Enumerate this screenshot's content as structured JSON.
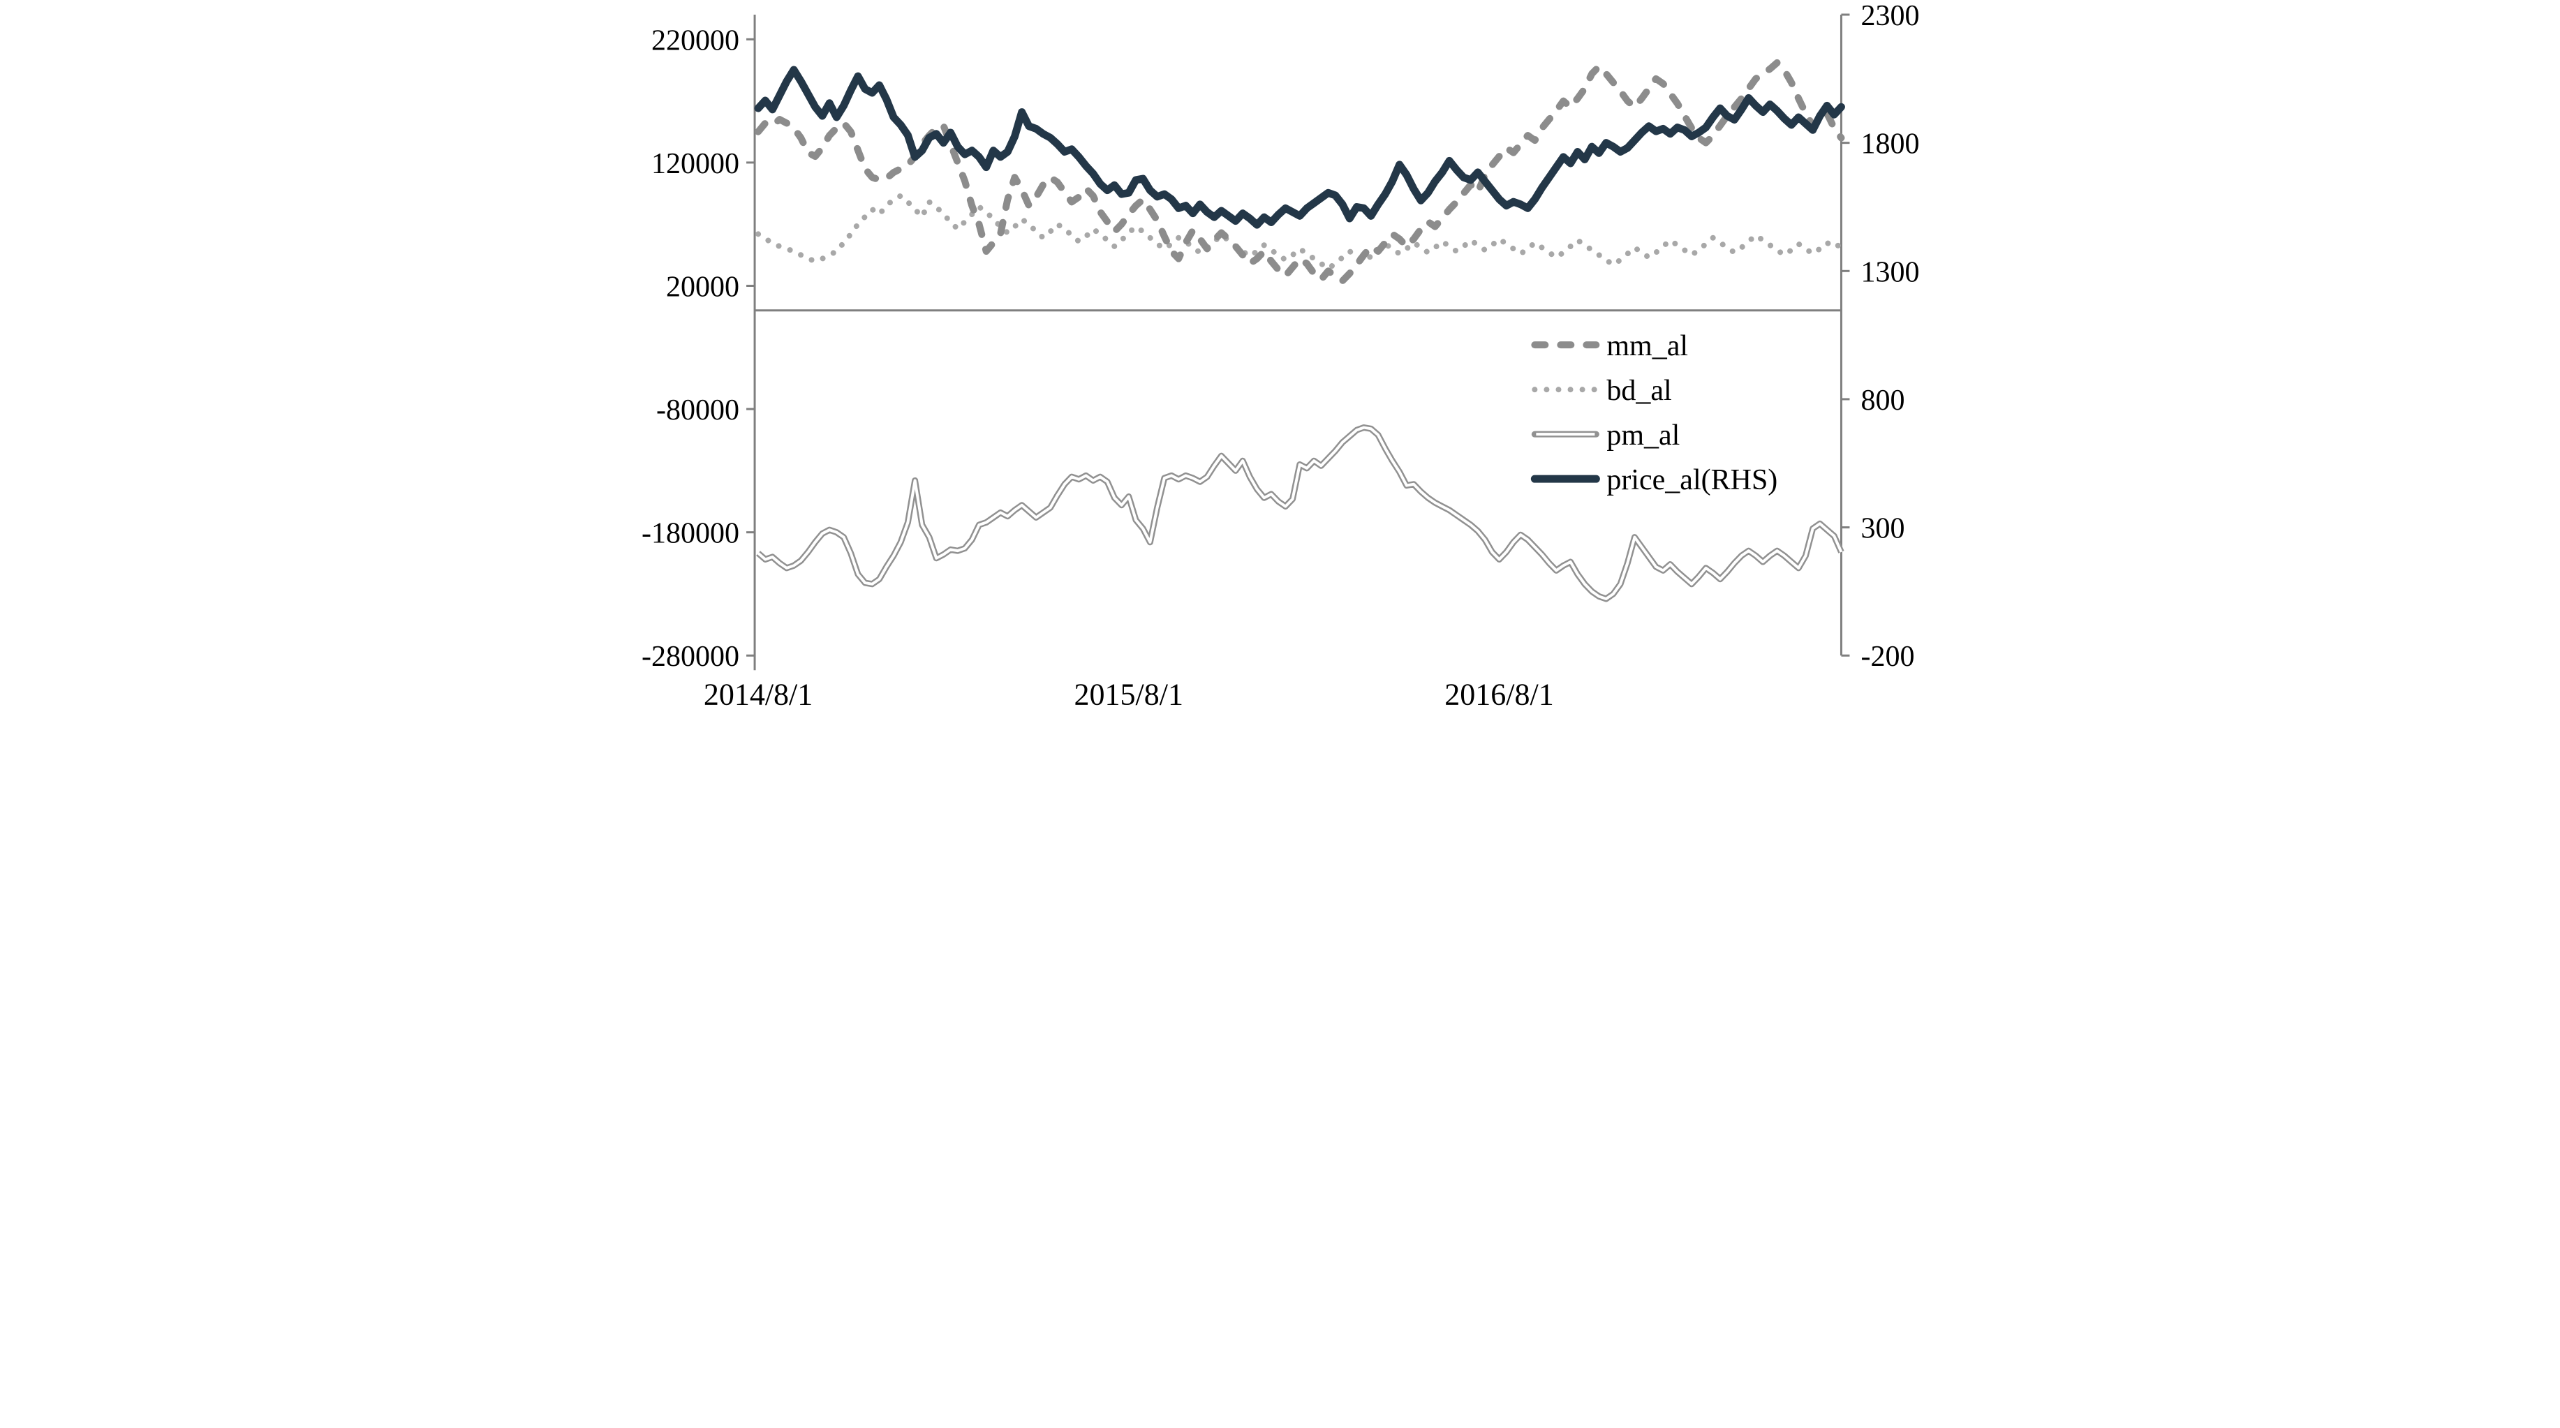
{
  "chart_data": {
    "type": "line",
    "title": "",
    "x_axis": {
      "labels": [
        "2014/8/1",
        "2015/8/1",
        "2016/8/1"
      ],
      "label_week_indices": [
        0,
        52,
        104
      ],
      "weeks_total": 153
    },
    "left_axis": {
      "min": -280000,
      "max": 240000,
      "tick_values": [
        220000,
        120000,
        20000,
        -80000,
        -180000,
        -280000
      ],
      "crosses_at": 0
    },
    "right_axis": {
      "min": -200,
      "max": 2300,
      "tick_values": [
        2300,
        1800,
        1300,
        800,
        300,
        -200
      ]
    },
    "grid": "off",
    "legend_position": "middle-right",
    "legend": [
      {
        "label": "mm_al",
        "style": "dashed",
        "color": "#8C8C8C"
      },
      {
        "label": "bd_al",
        "style": "dotted",
        "color": "#A8A8A8"
      },
      {
        "label": "pm_al",
        "style": "double",
        "color": "#919191"
      },
      {
        "label": "price_al(RHS)",
        "style": "solid",
        "color": "#233748"
      }
    ],
    "axis_color": "#7F7F7F",
    "series": [
      {
        "name": "mm_al",
        "axis": "left",
        "style": "dashed",
        "color": "#8C8C8C",
        "values": [
          145000,
          152000,
          150000,
          155000,
          152000,
          148000,
          140000,
          128000,
          125000,
          132000,
          142000,
          148000,
          152000,
          145000,
          130000,
          115000,
          108000,
          106000,
          107000,
          112000,
          115000,
          118000,
          125000,
          135000,
          142000,
          148000,
          150000,
          135000,
          120000,
          105000,
          85000,
          70000,
          48000,
          55000,
          62000,
          90000,
          108000,
          98000,
          85000,
          92000,
          102000,
          108000,
          104000,
          96000,
          88000,
          92000,
          99000,
          93000,
          80000,
          72000,
          64000,
          70000,
          78000,
          85000,
          90000,
          82000,
          73000,
          60000,
          48000,
          42000,
          55000,
          65000,
          58000,
          50000,
          57000,
          63000,
          58000,
          52000,
          45000,
          38000,
          42000,
          48000,
          40000,
          33000,
          28000,
          35000,
          42000,
          38000,
          30000,
          25000,
          32000,
          28000,
          24000,
          30000,
          37000,
          45000,
          52000,
          48000,
          55000,
          62000,
          58000,
          52000,
          58000,
          66000,
          72000,
          68000,
          75000,
          82000,
          88000,
          95000,
          102000,
          96000,
          110000,
          118000,
          125000,
          132000,
          128000,
          135000,
          142000,
          138000,
          148000,
          155000,
          162000,
          170000,
          165000,
          172000,
          180000,
          192000,
          198000,
          192000,
          185000,
          178000,
          170000,
          165000,
          172000,
          180000,
          188000,
          184000,
          176000,
          168000,
          158000,
          148000,
          140000,
          136000,
          142000,
          150000,
          158000,
          165000,
          172000,
          180000,
          188000,
          192000,
          196000,
          201000,
          195000,
          185000,
          172000,
          160000,
          150000,
          155000,
          160000,
          148000,
          140000
        ]
      },
      {
        "name": "bd_al",
        "axis": "left",
        "style": "dotted",
        "color": "#A8A8A8",
        "values": [
          62000,
          58000,
          55000,
          52000,
          50000,
          48000,
          45000,
          42000,
          40000,
          42000,
          45000,
          48000,
          55000,
          62000,
          70000,
          76000,
          82000,
          78000,
          85000,
          90000,
          93000,
          88000,
          82000,
          76000,
          88000,
          84000,
          78000,
          72000,
          66000,
          72000,
          78000,
          84000,
          80000,
          74000,
          68000,
          63000,
          68000,
          74000,
          70000,
          64000,
          59000,
          64000,
          70000,
          66000,
          61000,
          56000,
          60000,
          66000,
          62000,
          57000,
          52000,
          57000,
          63000,
          68000,
          64000,
          59000,
          54000,
          50000,
          54000,
          59000,
          56000,
          51000,
          47000,
          51000,
          56000,
          61000,
          57000,
          52000,
          48000,
          44000,
          48000,
          53000,
          49000,
          45000,
          41000,
          45000,
          50000,
          46000,
          42000,
          38000,
          34000,
          38000,
          43000,
          48000,
          44000,
          40000,
          44000,
          49000,
          54000,
          50000,
          46000,
          50000,
          55000,
          51000,
          47000,
          51000,
          56000,
          52000,
          48000,
          52000,
          57000,
          53000,
          49000,
          53000,
          58000,
          54000,
          50000,
          46000,
          50000,
          55000,
          51000,
          47000,
          43000,
          47000,
          52000,
          57000,
          53000,
          49000,
          45000,
          41000,
          37000,
          41000,
          46000,
          51000,
          47000,
          43000,
          47000,
          52000,
          57000,
          53000,
          49000,
          45000,
          49000,
          54000,
          59000,
          55000,
          51000,
          47000,
          51000,
          56000,
          61000,
          57000,
          53000,
          49000,
          45000,
          49000,
          54000,
          50000,
          46000,
          50000,
          55000,
          51000,
          54000
        ]
      },
      {
        "name": "pm_al",
        "axis": "left",
        "style": "double",
        "color": "#919191",
        "values": [
          -197000,
          -202000,
          -200000,
          -205000,
          -209000,
          -207000,
          -203000,
          -196000,
          -188000,
          -181000,
          -178000,
          -180000,
          -184000,
          -197000,
          -214000,
          -221000,
          -222000,
          -218000,
          -208000,
          -199000,
          -188000,
          -172000,
          -138000,
          -174000,
          -184000,
          -201000,
          -198000,
          -194000,
          -195000,
          -193000,
          -186000,
          -174000,
          -172000,
          -168000,
          -164000,
          -167000,
          -162000,
          -158000,
          -163000,
          -168000,
          -164000,
          -160000,
          -150000,
          -141000,
          -135000,
          -137000,
          -134000,
          -138000,
          -135000,
          -139000,
          -152000,
          -158000,
          -151000,
          -170000,
          -177000,
          -188000,
          -160000,
          -136000,
          -134000,
          -137000,
          -134000,
          -136000,
          -139000,
          -135000,
          -126000,
          -118000,
          -124000,
          -130000,
          -122000,
          -135000,
          -145000,
          -152000,
          -149000,
          -155000,
          -159000,
          -153000,
          -125000,
          -128000,
          -122000,
          -126000,
          -120000,
          -114000,
          -107000,
          -102000,
          -97000,
          -95000,
          -96000,
          -101000,
          -112000,
          -122000,
          -131000,
          -142000,
          -141000,
          -147000,
          -152000,
          -156000,
          -159000,
          -162000,
          -166000,
          -170000,
          -174000,
          -179000,
          -186000,
          -196000,
          -202000,
          -196000,
          -188000,
          -182000,
          -186000,
          -192000,
          -198000,
          -205000,
          -211000,
          -207000,
          -204000,
          -214000,
          -222000,
          -228000,
          -232000,
          -234000,
          -230000,
          -222000,
          -205000,
          -184000,
          -192000,
          -200000,
          -208000,
          -211000,
          -206000,
          -212000,
          -217000,
          -222000,
          -216000,
          -209000,
          -213000,
          -218000,
          -212000,
          -205000,
          -199000,
          -195000,
          -199000,
          -204000,
          -199000,
          -195000,
          -199000,
          -204000,
          -209000,
          -199000,
          -177000,
          -173000,
          -178000,
          -183000,
          -196000
        ]
      },
      {
        "name": "price_al(RHS)",
        "axis": "right",
        "style": "solid",
        "color": "#233748",
        "values": [
          1935,
          1965,
          1930,
          1985,
          2040,
          2085,
          2040,
          1990,
          1940,
          1905,
          1955,
          1900,
          1945,
          2005,
          2060,
          2010,
          1995,
          2025,
          1970,
          1900,
          1870,
          1830,
          1745,
          1770,
          1820,
          1835,
          1800,
          1840,
          1785,
          1755,
          1770,
          1745,
          1705,
          1770,
          1745,
          1765,
          1825,
          1920,
          1865,
          1855,
          1835,
          1820,
          1795,
          1765,
          1775,
          1745,
          1710,
          1680,
          1640,
          1615,
          1635,
          1600,
          1605,
          1655,
          1660,
          1615,
          1590,
          1600,
          1580,
          1545,
          1555,
          1525,
          1560,
          1530,
          1510,
          1535,
          1515,
          1495,
          1525,
          1505,
          1480,
          1510,
          1490,
          1520,
          1545,
          1530,
          1515,
          1545,
          1565,
          1585,
          1605,
          1595,
          1560,
          1505,
          1550,
          1545,
          1515,
          1560,
          1600,
          1650,
          1715,
          1675,
          1620,
          1575,
          1605,
          1650,
          1685,
          1730,
          1695,
          1665,
          1655,
          1685,
          1650,
          1615,
          1580,
          1555,
          1570,
          1560,
          1545,
          1580,
          1625,
          1665,
          1705,
          1745,
          1720,
          1765,
          1735,
          1785,
          1760,
          1800,
          1785,
          1765,
          1780,
          1810,
          1840,
          1865,
          1845,
          1855,
          1835,
          1860,
          1850,
          1825,
          1840,
          1860,
          1900,
          1935,
          1905,
          1890,
          1930,
          1975,
          1945,
          1920,
          1950,
          1925,
          1895,
          1870,
          1900,
          1875,
          1850,
          1905,
          1945,
          1910,
          1940
        ]
      }
    ]
  }
}
